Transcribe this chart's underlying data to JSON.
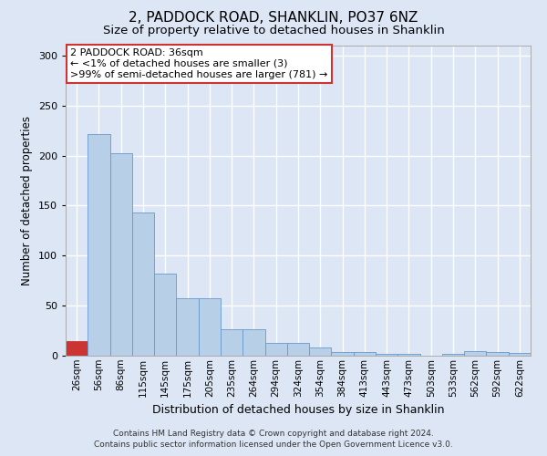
{
  "title": "2, PADDOCK ROAD, SHANKLIN, PO37 6NZ",
  "subtitle": "Size of property relative to detached houses in Shanklin",
  "xlabel": "Distribution of detached houses by size in Shanklin",
  "ylabel": "Number of detached properties",
  "categories": [
    "26sqm",
    "56sqm",
    "86sqm",
    "115sqm",
    "145sqm",
    "175sqm",
    "205sqm",
    "235sqm",
    "264sqm",
    "294sqm",
    "324sqm",
    "354sqm",
    "384sqm",
    "413sqm",
    "443sqm",
    "473sqm",
    "503sqm",
    "533sqm",
    "562sqm",
    "592sqm",
    "622sqm"
  ],
  "values": [
    15,
    222,
    202,
    143,
    82,
    57,
    57,
    26,
    26,
    13,
    13,
    8,
    4,
    4,
    2,
    2,
    0,
    2,
    5,
    4,
    3
  ],
  "bar_color": "#b8cfe8",
  "bar_edge_color": "#6699cc",
  "highlight_bar_index": 0,
  "highlight_bar_color": "#cc3333",
  "background_color": "#dce6f5",
  "plot_bg_color": "#dce6f5",
  "grid_color": "#ffffff",
  "annotation_box_text": "2 PADDOCK ROAD: 36sqm\n← <1% of detached houses are smaller (3)\n>99% of semi-detached houses are larger (781) →",
  "footer_line1": "Contains HM Land Registry data © Crown copyright and database right 2024.",
  "footer_line2": "Contains public sector information licensed under the Open Government Licence v3.0.",
  "ylim": [
    0,
    310
  ],
  "yticks": [
    0,
    50,
    100,
    150,
    200,
    250,
    300
  ]
}
